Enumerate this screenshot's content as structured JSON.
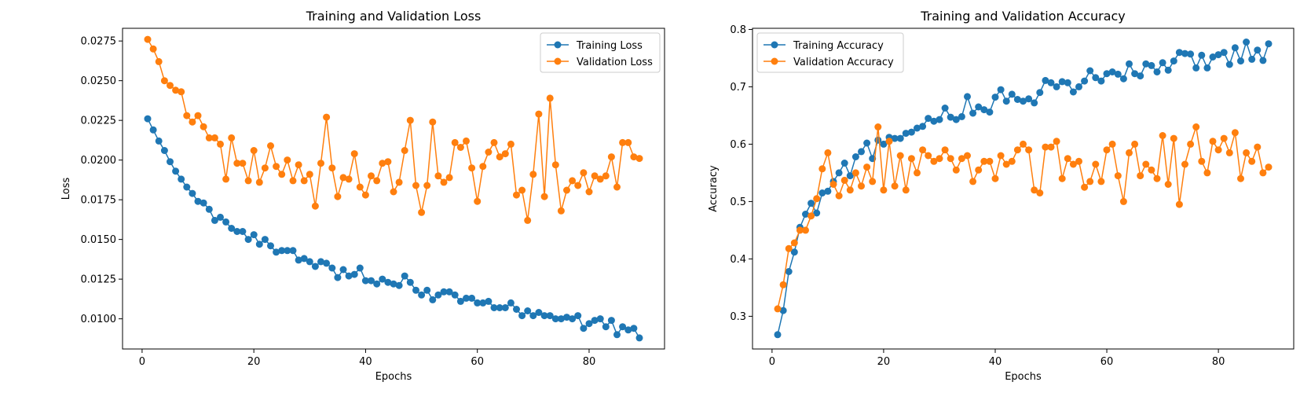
{
  "chart_data": [
    {
      "type": "line",
      "title": "Training and Validation Loss",
      "xlabel": "Epochs",
      "ylabel": "Loss",
      "xlim": [
        -3.5,
        93.5
      ],
      "ylim": [
        0.0081,
        0.0283
      ],
      "xticks": [
        0,
        20,
        40,
        60,
        80
      ],
      "xtick_labels": [
        "0",
        "20",
        "40",
        "60",
        "80"
      ],
      "yticks": [
        0.01,
        0.0125,
        0.015,
        0.0175,
        0.02,
        0.0225,
        0.025,
        0.0275
      ],
      "ytick_labels": [
        "0.0100",
        "0.0125",
        "0.0150",
        "0.0175",
        "0.0200",
        "0.0225",
        "0.0250",
        "0.0275"
      ],
      "grid": false,
      "legend_position": "top-right",
      "marker": "circle",
      "series": [
        {
          "name": "Training Loss",
          "color": "#1f77b4",
          "x_start": 1,
          "values": [
            0.0226,
            0.0219,
            0.0212,
            0.0206,
            0.0199,
            0.0193,
            0.0188,
            0.0183,
            0.0179,
            0.0174,
            0.0173,
            0.0169,
            0.0162,
            0.0164,
            0.0161,
            0.0157,
            0.0155,
            0.0155,
            0.015,
            0.0153,
            0.0147,
            0.015,
            0.0146,
            0.0142,
            0.0143,
            0.0143,
            0.0143,
            0.0137,
            0.0138,
            0.0136,
            0.0133,
            0.0136,
            0.0135,
            0.0132,
            0.0126,
            0.0131,
            0.0127,
            0.0128,
            0.0132,
            0.0124,
            0.0124,
            0.0122,
            0.0125,
            0.0123,
            0.0122,
            0.0121,
            0.0127,
            0.0123,
            0.0118,
            0.0115,
            0.0118,
            0.0112,
            0.0115,
            0.0117,
            0.0117,
            0.0115,
            0.0111,
            0.0113,
            0.0113,
            0.011,
            0.011,
            0.0111,
            0.0107,
            0.0107,
            0.0107,
            0.011,
            0.0106,
            0.0102,
            0.0105,
            0.0102,
            0.0104,
            0.0102,
            0.0102,
            0.01,
            0.01,
            0.0101,
            0.01,
            0.0102,
            0.0094,
            0.0097,
            0.0099,
            0.01,
            0.0095,
            0.0099,
            0.009,
            0.0095,
            0.0093,
            0.0094,
            0.0088
          ]
        },
        {
          "name": "Validation Loss",
          "color": "#ff7f0e",
          "x_start": 1,
          "values": [
            0.0276,
            0.027,
            0.0262,
            0.025,
            0.0247,
            0.0244,
            0.0243,
            0.0228,
            0.0224,
            0.0228,
            0.0221,
            0.0214,
            0.0214,
            0.021,
            0.0188,
            0.0214,
            0.0198,
            0.0198,
            0.0187,
            0.0206,
            0.0186,
            0.0195,
            0.0209,
            0.0196,
            0.0191,
            0.02,
            0.0187,
            0.0197,
            0.0187,
            0.0191,
            0.0171,
            0.0198,
            0.0227,
            0.0195,
            0.0177,
            0.0189,
            0.0188,
            0.0204,
            0.0183,
            0.0178,
            0.019,
            0.0187,
            0.0198,
            0.0199,
            0.018,
            0.0186,
            0.0206,
            0.0225,
            0.0184,
            0.0167,
            0.0184,
            0.0224,
            0.019,
            0.0186,
            0.0189,
            0.0211,
            0.0208,
            0.0212,
            0.0195,
            0.0174,
            0.0196,
            0.0205,
            0.0211,
            0.0202,
            0.0204,
            0.021,
            0.0178,
            0.0181,
            0.0162,
            0.0191,
            0.0229,
            0.0177,
            0.0239,
            0.0197,
            0.0168,
            0.0181,
            0.0187,
            0.0184,
            0.0192,
            0.018,
            0.019,
            0.0188,
            0.019,
            0.0202,
            0.0183,
            0.0211,
            0.0211,
            0.0202,
            0.0201
          ]
        }
      ]
    },
    {
      "type": "line",
      "title": "Training and Validation Accuracy",
      "xlabel": "Epochs",
      "ylabel": "Accuracy",
      "xlim": [
        -3.5,
        93.5
      ],
      "ylim": [
        0.243,
        0.802
      ],
      "xticks": [
        0,
        20,
        40,
        60,
        80
      ],
      "xtick_labels": [
        "0",
        "20",
        "40",
        "60",
        "80"
      ],
      "yticks": [
        0.3,
        0.4,
        0.5,
        0.6,
        0.7,
        0.8
      ],
      "ytick_labels": [
        "0.3",
        "0.4",
        "0.5",
        "0.6",
        "0.7",
        "0.8"
      ],
      "grid": false,
      "legend_position": "top-left",
      "marker": "circle",
      "series": [
        {
          "name": "Training Accuracy",
          "color": "#1f77b4",
          "x_start": 1,
          "values": [
            0.268,
            0.31,
            0.378,
            0.412,
            0.455,
            0.478,
            0.497,
            0.48,
            0.515,
            0.518,
            0.535,
            0.55,
            0.567,
            0.545,
            0.578,
            0.587,
            0.602,
            0.575,
            0.607,
            0.6,
            0.612,
            0.61,
            0.61,
            0.619,
            0.621,
            0.628,
            0.631,
            0.645,
            0.64,
            0.643,
            0.663,
            0.647,
            0.643,
            0.648,
            0.683,
            0.654,
            0.665,
            0.66,
            0.656,
            0.682,
            0.695,
            0.675,
            0.687,
            0.678,
            0.675,
            0.679,
            0.672,
            0.69,
            0.711,
            0.707,
            0.7,
            0.709,
            0.707,
            0.691,
            0.7,
            0.71,
            0.728,
            0.716,
            0.71,
            0.723,
            0.726,
            0.722,
            0.714,
            0.74,
            0.723,
            0.719,
            0.74,
            0.737,
            0.726,
            0.742,
            0.729,
            0.745,
            0.76,
            0.758,
            0.757,
            0.733,
            0.755,
            0.733,
            0.752,
            0.756,
            0.76,
            0.739,
            0.768,
            0.745,
            0.778,
            0.748,
            0.764,
            0.746,
            0.775
          ]
        },
        {
          "name": "Validation Accuracy",
          "color": "#ff7f0e",
          "x_start": 1,
          "values": [
            0.313,
            0.355,
            0.418,
            0.428,
            0.45,
            0.45,
            0.475,
            0.505,
            0.557,
            0.585,
            0.53,
            0.51,
            0.537,
            0.52,
            0.55,
            0.527,
            0.56,
            0.535,
            0.63,
            0.52,
            0.605,
            0.527,
            0.58,
            0.52,
            0.575,
            0.55,
            0.59,
            0.58,
            0.57,
            0.575,
            0.59,
            0.575,
            0.555,
            0.575,
            0.58,
            0.535,
            0.555,
            0.57,
            0.57,
            0.54,
            0.58,
            0.565,
            0.57,
            0.59,
            0.6,
            0.59,
            0.52,
            0.515,
            0.595,
            0.595,
            0.605,
            0.54,
            0.575,
            0.565,
            0.57,
            0.525,
            0.535,
            0.565,
            0.535,
            0.59,
            0.6,
            0.545,
            0.5,
            0.585,
            0.6,
            0.545,
            0.565,
            0.555,
            0.54,
            0.615,
            0.53,
            0.61,
            0.495,
            0.565,
            0.6,
            0.63,
            0.57,
            0.55,
            0.605,
            0.59,
            0.61,
            0.585,
            0.62,
            0.54,
            0.585,
            0.57,
            0.595,
            0.55,
            0.56
          ]
        }
      ]
    }
  ]
}
